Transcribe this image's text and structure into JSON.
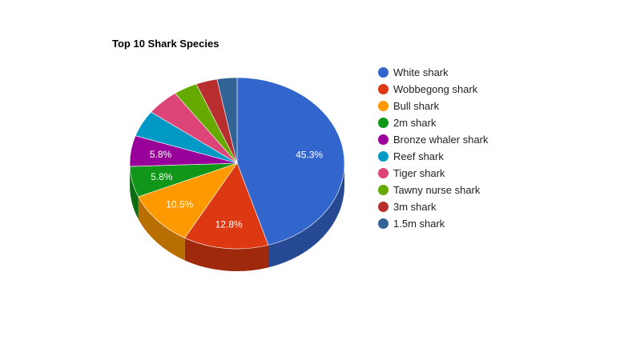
{
  "chart_data": {
    "type": "pie",
    "title": "Top 10 Shark Species",
    "legend_position": "right",
    "slices": [
      {
        "name": "White shark",
        "value": 45.3,
        "label": "45.3%",
        "color": "#3366cc"
      },
      {
        "name": "Wobbegong shark",
        "value": 12.8,
        "label": "12.8%",
        "color": "#dc3912"
      },
      {
        "name": "Bull shark",
        "value": 10.5,
        "label": "10.5%",
        "color": "#ff9900"
      },
      {
        "name": "2m shark",
        "value": 5.8,
        "label": "5.8%",
        "color": "#109618"
      },
      {
        "name": "Bronze whaler shark",
        "value": 5.8,
        "label": "5.8%",
        "color": "#990099"
      },
      {
        "name": "Reef shark",
        "value": 5.0,
        "label": "",
        "color": "#0099c6"
      },
      {
        "name": "Tiger shark",
        "value": 5.0,
        "label": "",
        "color": "#dd4477"
      },
      {
        "name": "Tawny nurse shark",
        "value": 3.6,
        "label": "",
        "color": "#66aa00"
      },
      {
        "name": "3m shark",
        "value": 3.2,
        "label": "",
        "color": "#b82e2e"
      },
      {
        "name": "1.5m shark",
        "value": 3.0,
        "label": "",
        "color": "#316395"
      }
    ]
  }
}
